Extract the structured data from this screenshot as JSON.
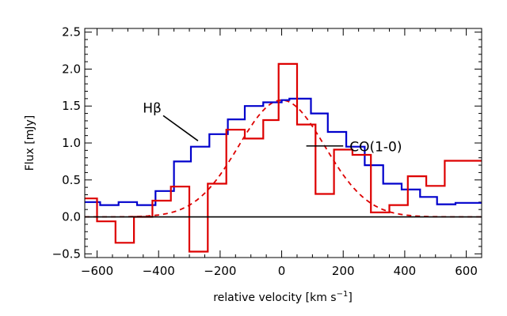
{
  "chart_data": {
    "type": "line",
    "xlabel_prefix": "relative velocity [km s",
    "xlabel_sup": "−1",
    "xlabel_suffix": "]",
    "ylabel": "Flux [mJy]",
    "xlim": [
      -640,
      650
    ],
    "ylim": [
      -0.55,
      2.55
    ],
    "xticks": [
      -600,
      -400,
      -200,
      0,
      200,
      400,
      600
    ],
    "xtick_labels": [
      "−600",
      "−400",
      "−200",
      "0",
      "200",
      "400",
      "600"
    ],
    "yticks": [
      -0.5,
      0.0,
      0.5,
      1.0,
      1.5,
      2.0,
      2.5
    ],
    "ytick_labels": [
      "−0.5",
      "0.0",
      "0.5",
      "1.0",
      "1.5",
      "2.0",
      "2.5"
    ],
    "minor_x_step": 50,
    "minor_y_step": 0.1,
    "annotations": [
      {
        "id": "hbeta",
        "text": "Hβ",
        "pointer_from": [
          -385,
          1.37
        ],
        "pointer_to": [
          -272,
          1.03
        ]
      },
      {
        "id": "co",
        "text": "CO(1-0)",
        "pointer_from": [
          80,
          0.96
        ],
        "pointer_to": [
          200,
          0.96
        ]
      }
    ],
    "series": [
      {
        "name": "Hβ",
        "style": "steps",
        "color": "#0000cc",
        "edges": [
          -640,
          -590,
          -530,
          -470,
          -410,
          -350,
          -295,
          -235,
          -175,
          -120,
          -60,
          0,
          25,
          95,
          150,
          210,
          270,
          330,
          390,
          450,
          505,
          565,
          650
        ],
        "values": [
          0.2,
          0.16,
          0.2,
          0.16,
          0.35,
          0.75,
          0.95,
          1.12,
          1.32,
          1.5,
          1.55,
          1.58,
          1.6,
          1.4,
          1.15,
          0.95,
          0.7,
          0.45,
          0.37,
          0.27,
          0.17,
          0.19
        ]
      },
      {
        "name": "CO(1-0)",
        "style": "steps",
        "color": "#dd0000",
        "edges": [
          -640,
          -600,
          -540,
          -480,
          -420,
          -360,
          -300,
          -240,
          -180,
          -120,
          -60,
          -10,
          50,
          110,
          170,
          230,
          290,
          350,
          410,
          470,
          530,
          595,
          650
        ],
        "values": [
          0.25,
          -0.06,
          -0.35,
          0.0,
          0.22,
          0.41,
          -0.47,
          0.45,
          1.18,
          1.06,
          1.31,
          2.07,
          1.25,
          0.31,
          0.91,
          0.84,
          0.06,
          0.16,
          0.55,
          0.42,
          0.76,
          0.76
        ]
      },
      {
        "name": "Gaussian fit",
        "style": "dashed",
        "color": "#dd0000",
        "amplitude": 1.58,
        "center": 0,
        "sigma": 140
      }
    ],
    "zero_line": 0.0
  }
}
